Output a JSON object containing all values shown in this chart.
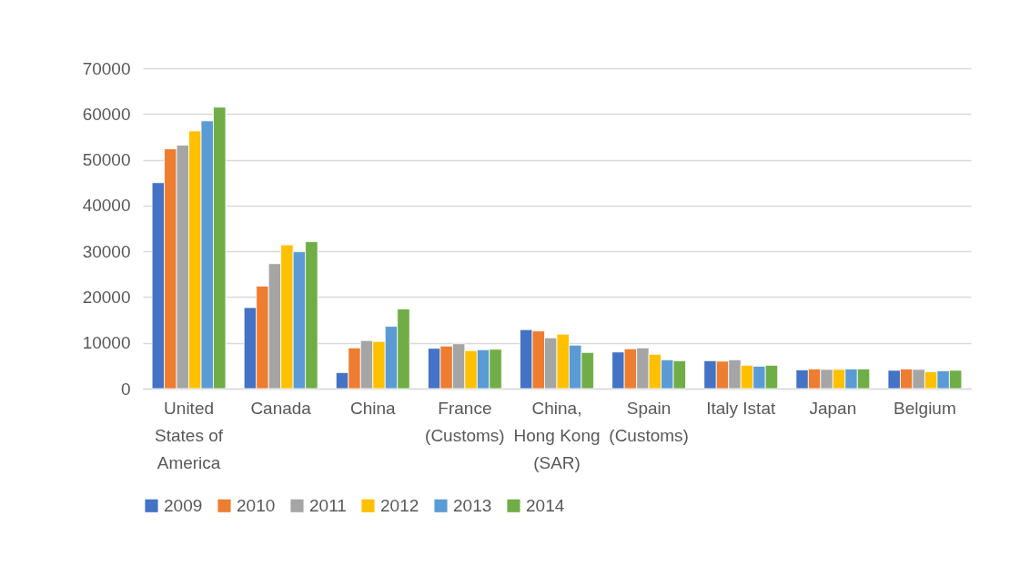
{
  "chart_data": {
    "type": "bar",
    "categories": [
      "United States of America",
      "Canada",
      "China",
      "France (Customs)",
      "China, Hong Kong (SAR)",
      "Spain (Customs)",
      "Italy Istat",
      "Japan",
      "Belgium"
    ],
    "series": [
      {
        "name": "2009",
        "color": "#4472c4",
        "values": [
          45000,
          17700,
          3500,
          8800,
          12900,
          8000,
          6100,
          4100,
          4000
        ]
      },
      {
        "name": "2010",
        "color": "#ed7d31",
        "values": [
          52400,
          22400,
          8900,
          9300,
          12600,
          8700,
          6000,
          4300,
          4300
        ]
      },
      {
        "name": "2011",
        "color": "#a5a5a5",
        "values": [
          53200,
          27300,
          10500,
          9800,
          11100,
          8900,
          6300,
          4200,
          4200
        ]
      },
      {
        "name": "2012",
        "color": "#ffc000",
        "values": [
          56300,
          31400,
          10300,
          8300,
          11900,
          7500,
          5100,
          4200,
          3700
        ]
      },
      {
        "name": "2013",
        "color": "#5b9bd5",
        "values": [
          58500,
          29900,
          13600,
          8500,
          9500,
          6300,
          4900,
          4300,
          3900
        ]
      },
      {
        "name": "2014",
        "color": "#70ad47",
        "values": [
          61500,
          32100,
          17400,
          8600,
          7900,
          6100,
          5100,
          4300,
          4000
        ]
      }
    ],
    "ylim": [
      0,
      70000
    ],
    "yticks": [
      0,
      10000,
      20000,
      30000,
      40000,
      50000,
      60000,
      70000
    ],
    "grid": "y",
    "legend": "bottom"
  }
}
